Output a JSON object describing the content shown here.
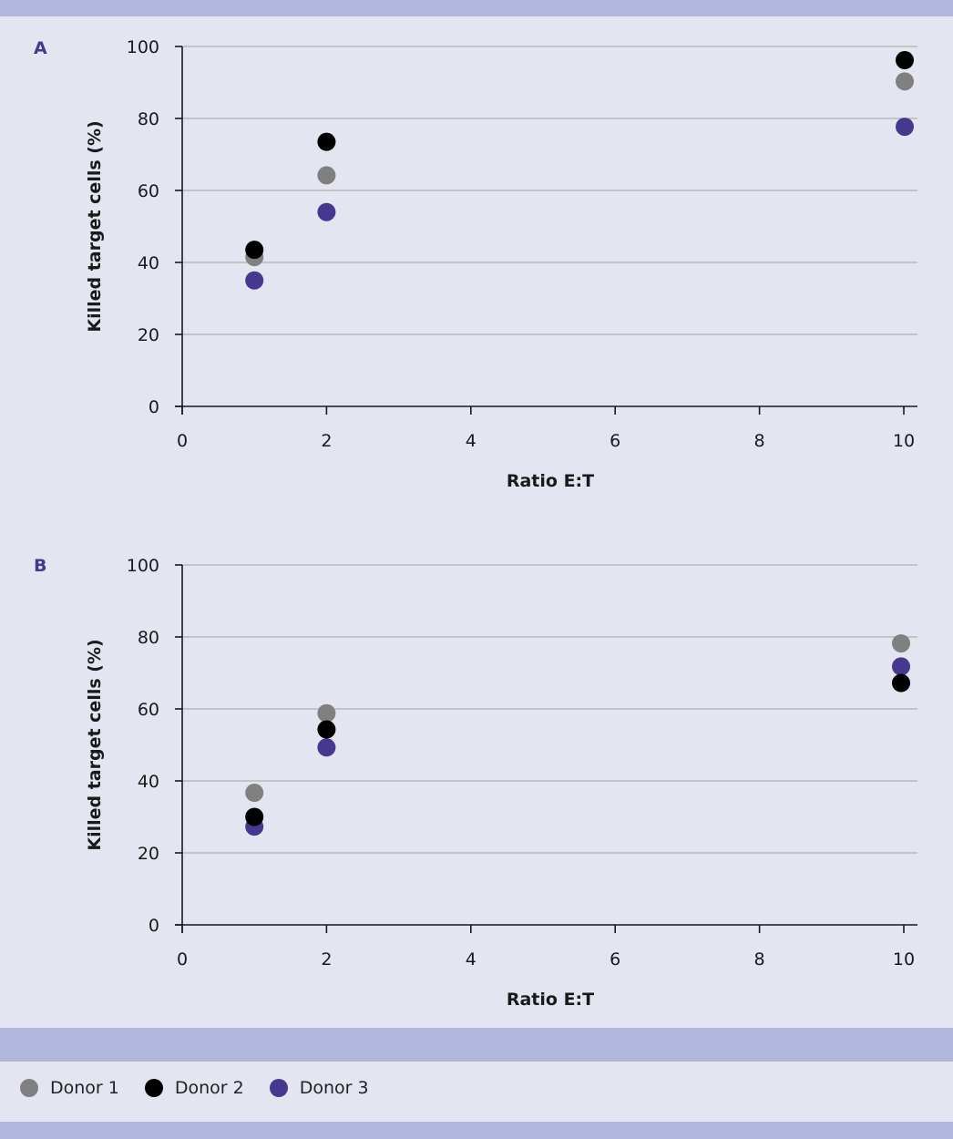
{
  "colors": {
    "donor1": "#808080",
    "donor2": "#000000",
    "donor3": "#46388f",
    "grid": "#b9b9b9",
    "axis": "#1a1a1a"
  },
  "legend": {
    "items": [
      {
        "label": "Donor 1",
        "color": "#808080"
      },
      {
        "label": "Donor 2",
        "color": "#000000"
      },
      {
        "label": "Donor 3",
        "color": "#46388f"
      }
    ]
  },
  "chart_data": [
    {
      "type": "scatter",
      "panel_label": "A",
      "title": "",
      "xlabel": "Ratio E:T",
      "ylabel": "Killed target cells (%)",
      "xlim": [
        0,
        10.2
      ],
      "ylim": [
        0,
        100
      ],
      "xticks": [
        0,
        2,
        4,
        6,
        8,
        10
      ],
      "yticks": [
        0,
        20,
        40,
        60,
        80,
        100
      ],
      "grid": "horizontal",
      "series": [
        {
          "name": "Donor 1",
          "x": [
            1,
            2,
            10
          ],
          "y": [
            41.5,
            64.2,
            90.3
          ]
        },
        {
          "name": "Donor 2",
          "x": [
            1,
            2,
            10
          ],
          "y": [
            43.5,
            73.5,
            96.2
          ]
        },
        {
          "name": "Donor 3",
          "x": [
            1,
            2,
            10
          ],
          "y": [
            35,
            54,
            77.7
          ]
        }
      ]
    },
    {
      "type": "scatter",
      "panel_label": "B",
      "title": "",
      "xlabel": "Ratio E:T",
      "ylabel": "Killed target cells (%)",
      "xlim": [
        0,
        10.2
      ],
      "ylim": [
        0,
        100
      ],
      "xticks": [
        0,
        2,
        4,
        6,
        8,
        10
      ],
      "yticks": [
        0,
        20,
        40,
        60,
        80,
        100
      ],
      "grid": "horizontal",
      "series": [
        {
          "name": "Donor 1",
          "x": [
            1,
            2,
            10
          ],
          "y": [
            36.7,
            58.8,
            78.2
          ]
        },
        {
          "name": "Donor 2",
          "x": [
            1,
            2,
            10
          ],
          "y": [
            30,
            54.3,
            67.2
          ]
        },
        {
          "name": "Donor 3",
          "x": [
            1,
            2,
            10
          ],
          "y": [
            27.3,
            49.3,
            71.8
          ]
        }
      ]
    }
  ]
}
